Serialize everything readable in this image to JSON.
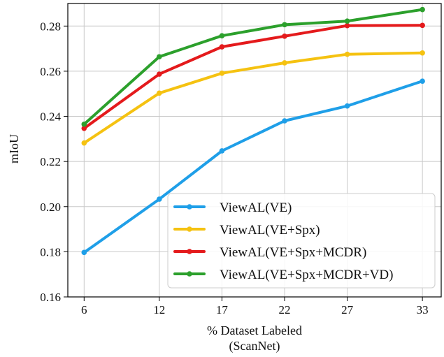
{
  "chart_data": {
    "type": "line",
    "x": [
      6,
      12,
      17,
      22,
      27,
      33
    ],
    "x_tick_labels": [
      "6",
      "12",
      "17",
      "22",
      "27",
      "33"
    ],
    "ylim": [
      0.16,
      0.29
    ],
    "y_ticks": [
      0.16,
      0.18,
      0.2,
      0.22,
      0.24,
      0.26,
      0.28
    ],
    "y_tick_labels": [
      "0.16",
      "0.18",
      "0.20",
      "0.22",
      "0.24",
      "0.26",
      "0.28"
    ],
    "xlabel": "% Dataset Labeled",
    "xlabel_sub": "(ScanNet)",
    "ylabel": "mIoU",
    "grid": true,
    "legend_position": "lower-right",
    "series": [
      {
        "name": "ViewAL(VE)",
        "color": "#1f9fe8",
        "values": [
          0.1797,
          0.2033,
          0.2247,
          0.238,
          0.2446,
          0.2556
        ]
      },
      {
        "name": "ViewAL(VE+Spx)",
        "color": "#f5c211",
        "values": [
          0.2282,
          0.2503,
          0.2591,
          0.2637,
          0.2675,
          0.2681
        ]
      },
      {
        "name": "ViewAL(VE+Spx+MCDR)",
        "color": "#e41a1c",
        "values": [
          0.2347,
          0.2587,
          0.2708,
          0.2755,
          0.2802,
          0.2803
        ]
      },
      {
        "name": "ViewAL(VE+Spx+MCDR+VD)",
        "color": "#2ca02c",
        "values": [
          0.2365,
          0.2664,
          0.2757,
          0.2806,
          0.2822,
          0.2873
        ]
      }
    ]
  }
}
